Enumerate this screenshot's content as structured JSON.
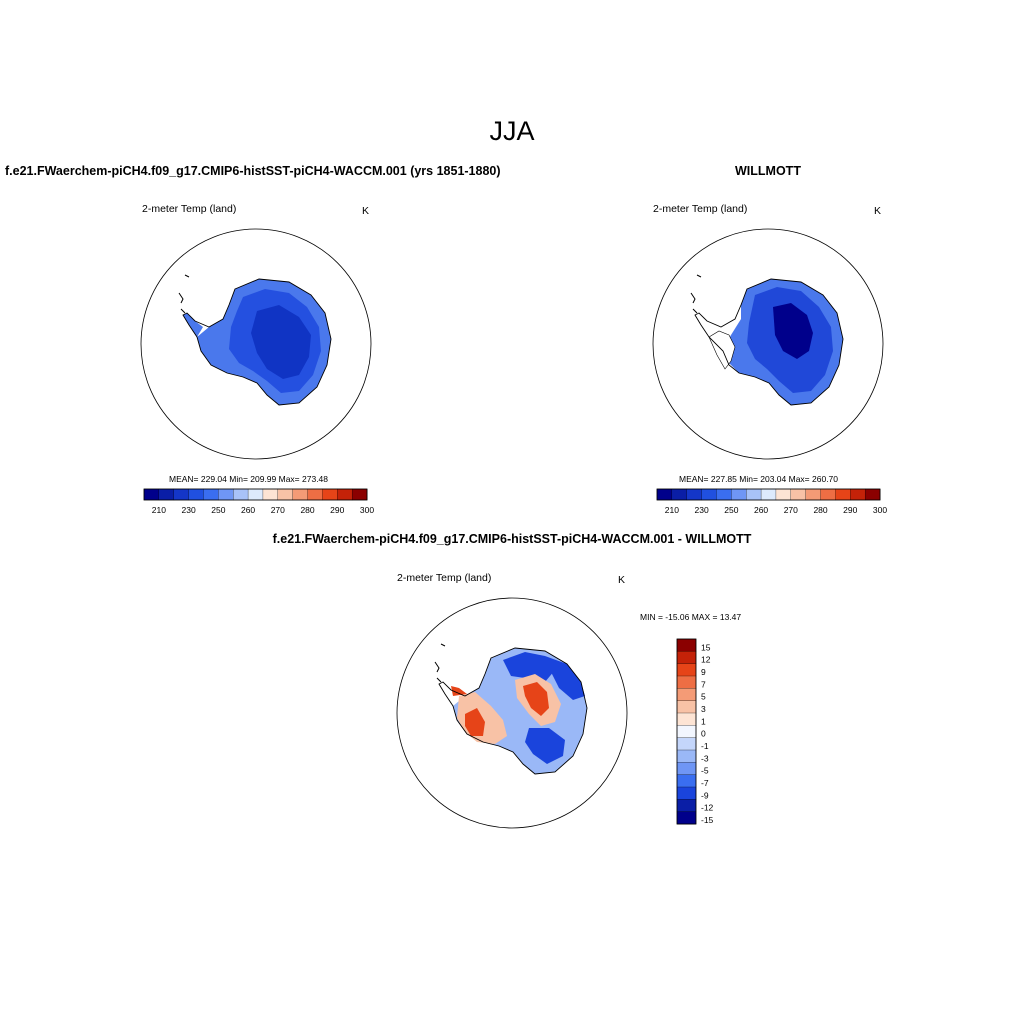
{
  "figure": {
    "title": "JJA",
    "units": "K"
  },
  "panels": {
    "model": {
      "title": "f.e21.FWaerchem-piCH4.f09_g17.CMIP6-histSST-piCH4-WACCM.001 (yrs 1851-1880)",
      "variable": "2-meter Temp (land)",
      "units": "K",
      "stats": "MEAN= 229.04  Min= 209.99  Max= 273.48"
    },
    "obs": {
      "title": "WILLMOTT",
      "variable": "2-meter Temp (land)",
      "units": "K",
      "stats": "MEAN= 227.85  Min= 203.04  Max= 260.70"
    },
    "diff": {
      "title": "f.e21.FWaerchem-piCH4.f09_g17.CMIP6-histSST-piCH4-WACCM.001 - WILLMOTT",
      "variable": "2-meter Temp (land)",
      "units": "K",
      "stats": "MIN = -15.06 MAX =  13.47"
    }
  },
  "colorbars": {
    "absolute": {
      "tick_labels": [
        "210",
        "230",
        "250",
        "260",
        "270",
        "280",
        "290",
        "300"
      ],
      "colors": [
        "#00008b",
        "#0a1ea6",
        "#1436c8",
        "#2050e0",
        "#3a6ef0",
        "#6f96f5",
        "#a8c2f8",
        "#ddeafc",
        "#fde4d4",
        "#f8c2a6",
        "#f49b76",
        "#ee6e44",
        "#e64418",
        "#c42208",
        "#8b0000"
      ]
    },
    "difference": {
      "tick_labels": [
        "15",
        "12",
        "9",
        "7",
        "5",
        "3",
        "1",
        "0",
        "-1",
        "-3",
        "-5",
        "-7",
        "-9",
        "-12",
        "-15"
      ],
      "colors": [
        "#8b0000",
        "#c42208",
        "#e64418",
        "#ee6e44",
        "#f49b76",
        "#f8c2a6",
        "#fde4d4",
        "#f2f6fe",
        "#c4d6fb",
        "#9ab8f7",
        "#6f96f5",
        "#3a6ef0",
        "#1a44dc",
        "#0a1ea6",
        "#00008b"
      ]
    }
  },
  "map_colors": {
    "model_fill_light": "#4a78ec",
    "model_fill_mid": "#2450e0",
    "model_fill_dark": "#1034c4",
    "obs_fill_light": "#4a78ec",
    "obs_fill_mid": "#2048d8",
    "obs_fill_dark": "#00008b",
    "diff_blue": "#1a44dc",
    "diff_light_blue": "#9ab8f7",
    "diff_red": "#e64418",
    "diff_light_red": "#f8c2a6",
    "diff_white": "#ffffff"
  }
}
